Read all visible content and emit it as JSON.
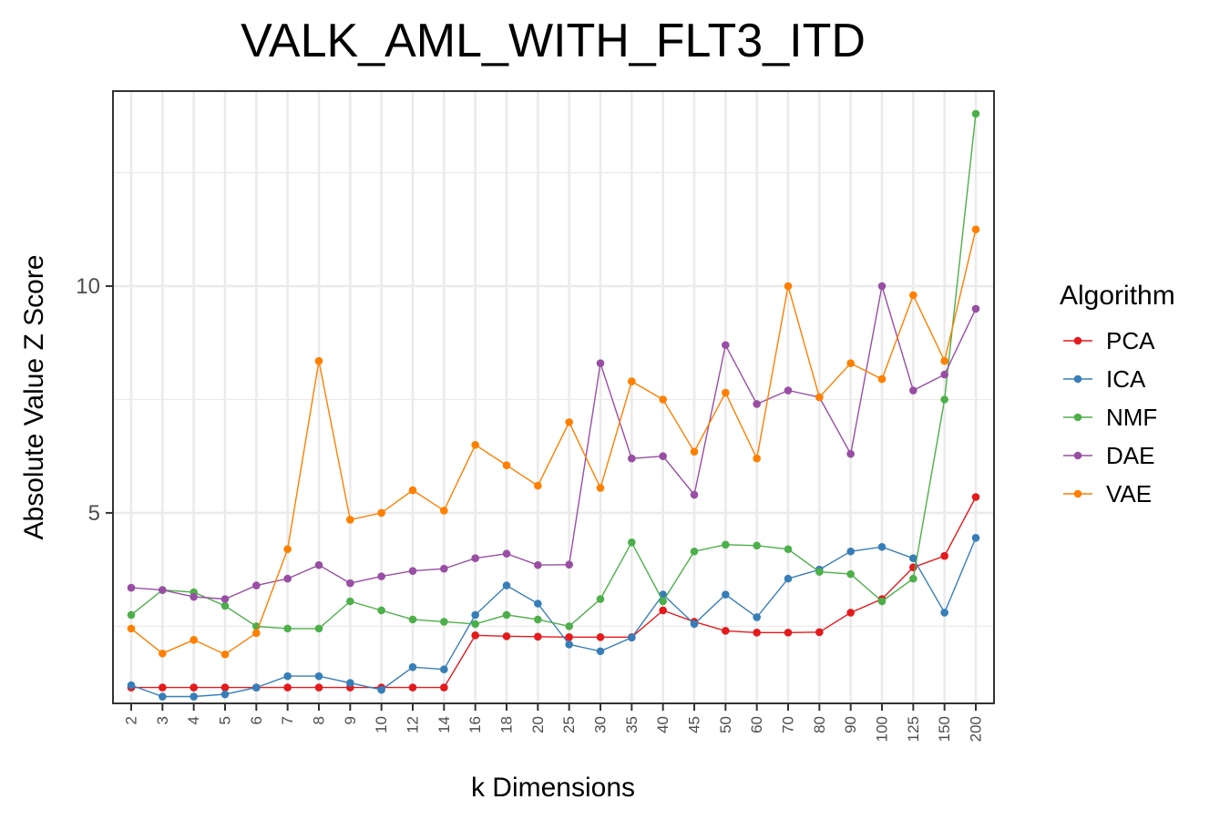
{
  "chart_data": {
    "type": "line",
    "title": "VALK_AML_WITH_FLT3_ITD",
    "xlabel": "k Dimensions",
    "ylabel": "Absolute Value Z Score",
    "categories": [
      "2",
      "3",
      "4",
      "5",
      "6",
      "7",
      "8",
      "9",
      "10",
      "12",
      "14",
      "16",
      "18",
      "20",
      "25",
      "30",
      "35",
      "40",
      "45",
      "50",
      "60",
      "70",
      "80",
      "90",
      "100",
      "125",
      "150",
      "200"
    ],
    "yticks": [
      5,
      10
    ],
    "ylim": [
      0.8,
      14.3
    ],
    "grid": true,
    "legend": {
      "title": "Algorithm",
      "position": "right"
    },
    "series": [
      {
        "name": "PCA",
        "color": "#E41A1C",
        "values": [
          1.15,
          1.15,
          1.15,
          1.15,
          1.15,
          1.15,
          1.15,
          1.15,
          1.15,
          1.15,
          1.15,
          2.3,
          2.28,
          2.27,
          2.26,
          2.26,
          2.26,
          2.85,
          2.6,
          2.4,
          2.36,
          2.36,
          2.37,
          2.8,
          3.1,
          3.8,
          4.05,
          5.35
        ]
      },
      {
        "name": "ICA",
        "color": "#377EB8",
        "values": [
          1.2,
          0.95,
          0.95,
          1.0,
          1.15,
          1.4,
          1.4,
          1.25,
          1.1,
          1.6,
          1.55,
          2.75,
          3.4,
          3.0,
          2.1,
          1.95,
          2.25,
          3.2,
          2.55,
          3.2,
          2.7,
          3.55,
          3.75,
          4.15,
          4.25,
          4.0,
          2.8,
          4.45
        ]
      },
      {
        "name": "NMF",
        "color": "#4DAF4A",
        "values": [
          2.75,
          3.3,
          3.25,
          2.95,
          2.5,
          2.45,
          2.45,
          3.05,
          2.85,
          2.65,
          2.6,
          2.55,
          2.75,
          2.65,
          2.5,
          3.1,
          4.35,
          3.05,
          4.15,
          4.3,
          4.28,
          4.2,
          3.7,
          3.65,
          3.05,
          3.55,
          7.5,
          13.8
        ]
      },
      {
        "name": "DAE",
        "color": "#984EA3",
        "values": [
          3.35,
          3.3,
          3.15,
          3.1,
          3.4,
          3.55,
          3.85,
          3.45,
          3.6,
          3.72,
          3.77,
          4.0,
          4.1,
          3.85,
          3.86,
          8.3,
          6.2,
          6.25,
          5.4,
          8.7,
          7.4,
          7.7,
          7.55,
          6.3,
          10.0,
          7.7,
          8.05,
          9.5
        ]
      },
      {
        "name": "VAE",
        "color": "#FF7F00",
        "values": [
          2.45,
          1.9,
          2.2,
          1.88,
          2.35,
          4.2,
          8.35,
          4.85,
          5.0,
          5.5,
          5.05,
          6.5,
          6.05,
          5.6,
          7.0,
          5.55,
          7.9,
          7.5,
          6.35,
          7.65,
          6.2,
          10.0,
          7.55,
          8.3,
          7.95,
          9.8,
          8.35,
          11.25
        ]
      }
    ]
  }
}
